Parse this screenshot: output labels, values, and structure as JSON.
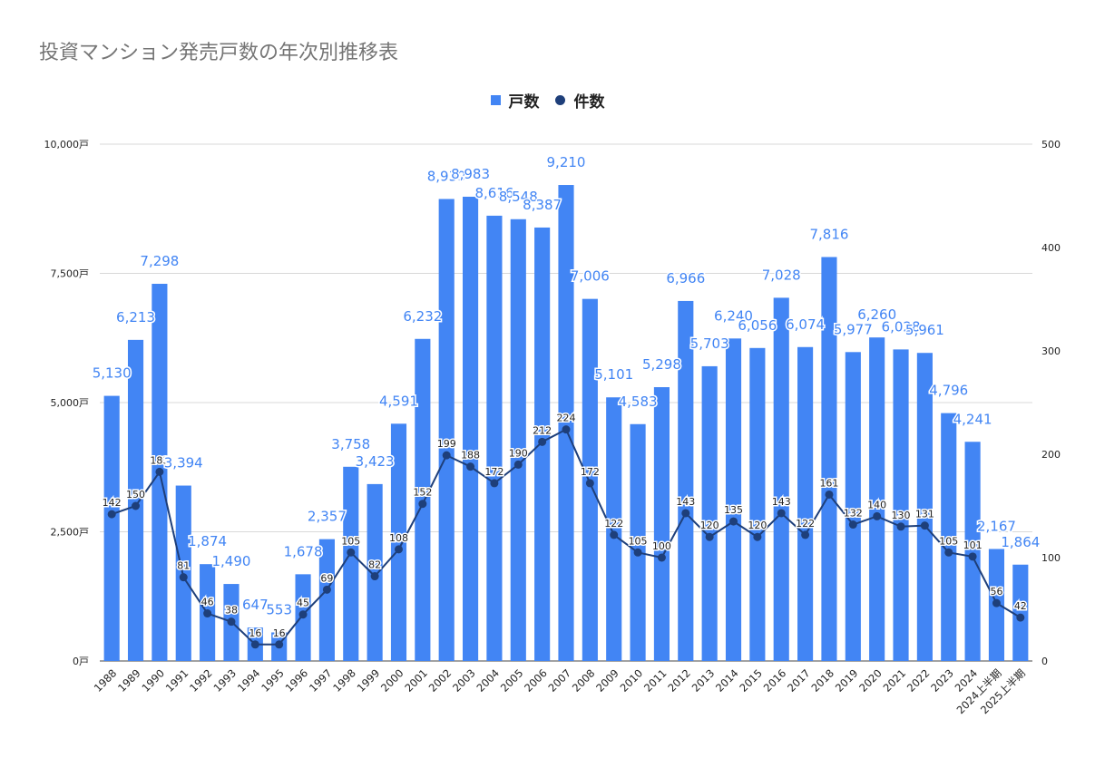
{
  "title": "投資マンション発売戸数の年次別推移表",
  "legend": {
    "bar_label": "戸数",
    "line_label": "件数"
  },
  "colors": {
    "bar": "#4285f4",
    "line": "#1e3f7a",
    "bar_label": "#4285f4",
    "grid": "#d9d9d9"
  },
  "chart_data": {
    "type": "bar",
    "categories": [
      "1988",
      "1989",
      "1990",
      "1991",
      "1992",
      "1993",
      "1994",
      "1995",
      "1996",
      "1997",
      "1998",
      "1999",
      "2000",
      "2001",
      "2002",
      "2003",
      "2004",
      "2005",
      "2006",
      "2007",
      "2008",
      "2009",
      "2010",
      "2011",
      "2012",
      "2013",
      "2014",
      "2015",
      "2016",
      "2017",
      "2018",
      "2019",
      "2020",
      "2021",
      "2022",
      "2023",
      "2024",
      "2024上半期",
      "2025上半期"
    ],
    "series": [
      {
        "name": "戸数",
        "type": "bar",
        "axis": "left",
        "values": [
          5130,
          6213,
          7298,
          3394,
          1874,
          1490,
          647,
          553,
          1678,
          2357,
          3758,
          3423,
          4591,
          6232,
          8939,
          8983,
          8616,
          8548,
          8387,
          9210,
          7006,
          5101,
          4583,
          5298,
          6966,
          5703,
          6240,
          6056,
          7028,
          6074,
          7816,
          5977,
          6260,
          6028,
          5961,
          4796,
          4241,
          2167,
          1864
        ],
        "labels": [
          "5,130",
          "6,213",
          "7,298",
          "3,394",
          "1,874",
          "1,490",
          "647",
          "553",
          "1,678",
          "2,357",
          "3,758",
          "3,423",
          "4,591",
          "6,232",
          "8,939",
          "8,983",
          "8,616",
          "8,548",
          "8,387",
          "9,210",
          "7,006",
          "5,101",
          "4,583",
          "5,298",
          "6,966",
          "5,703",
          "6,240",
          "6,056",
          "7,028",
          "6,074",
          "7,816",
          "5,977",
          "6,260",
          "6,028",
          "5,961",
          "4,796",
          "4,241",
          "2,167",
          "1,864"
        ]
      },
      {
        "name": "件数",
        "type": "line",
        "axis": "right",
        "values": [
          142,
          150,
          183,
          81,
          46,
          38,
          16,
          16,
          45,
          69,
          105,
          82,
          108,
          152,
          199,
          188,
          172,
          190,
          212,
          224,
          172,
          122,
          105,
          100,
          143,
          120,
          135,
          120,
          143,
          122,
          161,
          132,
          140,
          130,
          131,
          105,
          101,
          56,
          42
        ],
        "labels": [
          "142",
          "150",
          "183",
          "81",
          "46",
          "38",
          "16",
          "16",
          "45",
          "69",
          "105",
          "82",
          "108",
          "152",
          "199",
          "188",
          "172",
          "190",
          "212",
          "224",
          "172",
          "122",
          "105",
          "100",
          "143",
          "120",
          "135",
          "120",
          "143",
          "122",
          "161",
          "132",
          "140",
          "130",
          "131",
          "105",
          "101",
          "56",
          "42"
        ]
      }
    ],
    "y_left": {
      "range": [
        0,
        10000
      ],
      "ticks": [
        "0戸",
        "2,500戸",
        "5,000戸",
        "7,500戸",
        "10,000戸"
      ],
      "tick_values": [
        0,
        2500,
        5000,
        7500,
        10000
      ]
    },
    "y_right": {
      "range": [
        0,
        500
      ],
      "ticks": [
        "0",
        "100",
        "200",
        "300",
        "400",
        "500"
      ],
      "tick_values": [
        0,
        100,
        200,
        300,
        400,
        500
      ]
    },
    "grid": true,
    "legend_position": "top-center"
  }
}
